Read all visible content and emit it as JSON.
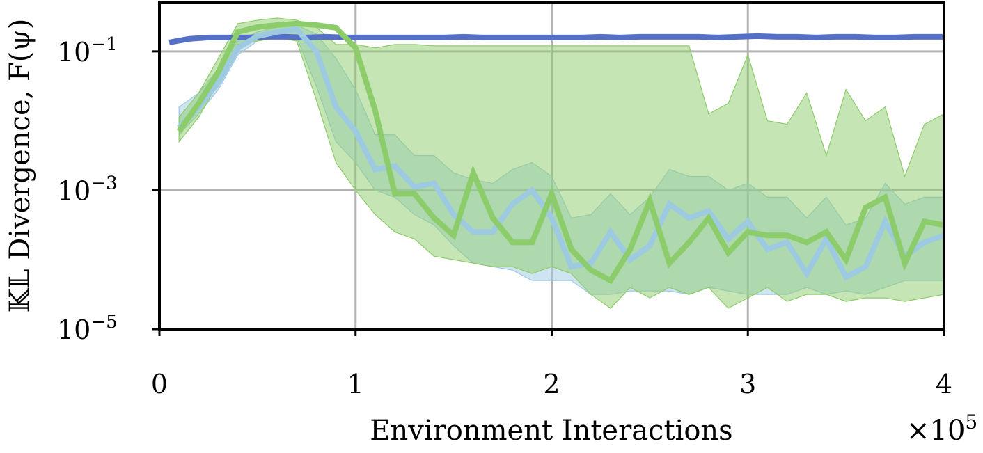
{
  "chart_data": {
    "type": "line",
    "title": "",
    "xlabel": "Environment Interactions",
    "ylabel": "𝕂𝕃 Divergence, F(ψ)",
    "x_multiplier": "×10",
    "x_multiplier_exp": "5",
    "xlim": [
      0,
      4
    ],
    "ylim_log10": [
      -5,
      -0.3
    ],
    "y_scale": "log",
    "grid": true,
    "xticks": [
      {
        "value": 0,
        "label": "0"
      },
      {
        "value": 1,
        "label": "1"
      },
      {
        "value": 2,
        "label": "2"
      },
      {
        "value": 3,
        "label": "3"
      },
      {
        "value": 4,
        "label": "4"
      }
    ],
    "yticks": [
      {
        "log10": -1,
        "base": "10",
        "exp": "−1"
      },
      {
        "log10": -3,
        "base": "10",
        "exp": "−3"
      },
      {
        "log10": -5,
        "base": "10",
        "exp": "−5"
      }
    ],
    "series": [
      {
        "color": "#5470c6",
        "x": [
          0.05,
          0.15,
          0.25,
          0.35,
          0.45,
          0.55,
          0.65,
          0.75,
          0.85,
          0.95,
          1.05,
          1.15,
          1.25,
          1.35,
          1.45,
          1.55,
          1.65,
          1.75,
          1.85,
          1.95,
          2.05,
          2.15,
          2.25,
          2.35,
          2.45,
          2.55,
          2.65,
          2.75,
          2.85,
          2.95,
          3.05,
          3.15,
          3.25,
          3.35,
          3.45,
          3.55,
          3.65,
          3.75,
          3.85,
          3.95,
          4.0
        ],
        "log10": [
          -0.87,
          -0.82,
          -0.8,
          -0.8,
          -0.8,
          -0.79,
          -0.79,
          -0.8,
          -0.79,
          -0.8,
          -0.8,
          -0.8,
          -0.8,
          -0.8,
          -0.8,
          -0.79,
          -0.8,
          -0.8,
          -0.8,
          -0.8,
          -0.8,
          -0.8,
          -0.79,
          -0.8,
          -0.79,
          -0.79,
          -0.79,
          -0.79,
          -0.8,
          -0.79,
          -0.78,
          -0.79,
          -0.79,
          -0.8,
          -0.79,
          -0.79,
          -0.8,
          -0.8,
          -0.79,
          -0.79,
          -0.79
        ],
        "band_low": null,
        "band_high": null,
        "band_color": null
      },
      {
        "color": "#9ecae1",
        "x": [
          0.1,
          0.2,
          0.3,
          0.4,
          0.5,
          0.6,
          0.7,
          0.8,
          0.9,
          1.0,
          1.1,
          1.2,
          1.3,
          1.4,
          1.5,
          1.6,
          1.7,
          1.8,
          1.9,
          2.0,
          2.1,
          2.2,
          2.3,
          2.4,
          2.5,
          2.6,
          2.7,
          2.8,
          2.9,
          3.0,
          3.1,
          3.2,
          3.3,
          3.4,
          3.5,
          3.6,
          3.7,
          3.8,
          3.9,
          4.0
        ],
        "log10": [
          -2.1,
          -1.8,
          -1.45,
          -0.95,
          -0.78,
          -0.72,
          -0.68,
          -1.0,
          -1.8,
          -2.15,
          -2.7,
          -2.65,
          -2.95,
          -2.9,
          -3.35,
          -3.6,
          -3.6,
          -3.2,
          -3.0,
          -3.4,
          -4.1,
          -4.05,
          -3.6,
          -4.0,
          -3.8,
          -3.2,
          -3.4,
          -3.3,
          -3.7,
          -3.45,
          -3.85,
          -3.75,
          -4.2,
          -3.7,
          -4.25,
          -4.1,
          -3.45,
          -3.95,
          -3.75,
          -3.65
        ],
        "band_low": [
          -2.2,
          -1.9,
          -1.55,
          -1.05,
          -0.85,
          -0.8,
          -0.8,
          -1.5,
          -2.3,
          -2.6,
          -3.0,
          -3.1,
          -3.35,
          -3.5,
          -3.8,
          -4.05,
          -4.1,
          -4.15,
          -4.3,
          -4.3,
          -4.3,
          -4.5,
          -4.5,
          -4.45,
          -4.45,
          -4.45,
          -4.5,
          -4.4,
          -4.45,
          -4.5,
          -4.5,
          -4.5,
          -4.4,
          -4.5,
          -4.45,
          -4.5,
          -4.4,
          -4.3,
          -4.3,
          -4.3
        ],
        "band_high": [
          -1.8,
          -1.6,
          -1.25,
          -0.85,
          -0.72,
          -0.65,
          -0.62,
          -0.75,
          -1.1,
          -1.55,
          -2.2,
          -2.2,
          -2.5,
          -2.5,
          -2.75,
          -2.85,
          -2.9,
          -2.7,
          -2.6,
          -2.8,
          -3.4,
          -3.35,
          -3.05,
          -3.35,
          -3.1,
          -2.7,
          -2.8,
          -2.8,
          -3.0,
          -2.9,
          -3.1,
          -3.1,
          -3.4,
          -3.1,
          -3.5,
          -3.4,
          -2.9,
          -3.2,
          -3.1,
          -3.1
        ],
        "band_color": "#9ecae1"
      },
      {
        "color": "#8dcc6a",
        "x": [
          0.1,
          0.2,
          0.3,
          0.4,
          0.5,
          0.6,
          0.7,
          0.8,
          0.9,
          1.0,
          1.1,
          1.2,
          1.3,
          1.4,
          1.5,
          1.6,
          1.7,
          1.8,
          1.9,
          2.0,
          2.1,
          2.2,
          2.3,
          2.4,
          2.5,
          2.6,
          2.7,
          2.8,
          2.9,
          3.0,
          3.1,
          3.2,
          3.3,
          3.4,
          3.5,
          3.6,
          3.7,
          3.8,
          3.9,
          4.0
        ],
        "log10": [
          -2.15,
          -1.75,
          -1.3,
          -0.72,
          -0.65,
          -0.62,
          -0.6,
          -0.62,
          -0.66,
          -0.95,
          -1.85,
          -3.05,
          -3.05,
          -3.4,
          -3.65,
          -2.75,
          -3.4,
          -3.75,
          -3.75,
          -3.05,
          -3.85,
          -4.15,
          -4.3,
          -3.85,
          -3.15,
          -4.05,
          -3.75,
          -3.4,
          -3.9,
          -3.6,
          -3.65,
          -3.65,
          -3.75,
          -3.6,
          -4.0,
          -3.25,
          -3.1,
          -4.05,
          -3.45,
          -3.5
        ],
        "band_low": [
          -2.3,
          -1.95,
          -1.45,
          -0.9,
          -0.85,
          -0.8,
          -0.85,
          -1.7,
          -2.6,
          -3.0,
          -3.35,
          -3.6,
          -3.7,
          -3.95,
          -4.0,
          -4.05,
          -4.1,
          -4.1,
          -4.2,
          -4.1,
          -4.2,
          -4.5,
          -4.7,
          -4.4,
          -4.55,
          -4.4,
          -4.5,
          -4.4,
          -4.7,
          -4.55,
          -4.4,
          -4.6,
          -4.5,
          -4.5,
          -4.6,
          -4.55,
          -4.55,
          -4.6,
          -4.55,
          -4.5
        ],
        "band_high": [
          -1.95,
          -1.6,
          -1.1,
          -0.6,
          -0.55,
          -0.52,
          -0.55,
          -0.65,
          -0.9,
          -0.9,
          -0.95,
          -0.9,
          -0.9,
          -0.92,
          -0.92,
          -0.92,
          -0.92,
          -0.92,
          -0.92,
          -0.92,
          -0.92,
          -0.92,
          -0.92,
          -0.92,
          -0.92,
          -0.92,
          -0.92,
          -1.9,
          -1.75,
          -1.05,
          -2.0,
          -2.05,
          -1.6,
          -2.5,
          -1.55,
          -2.0,
          -1.8,
          -2.8,
          -2.05,
          -1.9
        ],
        "band_color": "#8dcc6a"
      }
    ]
  }
}
